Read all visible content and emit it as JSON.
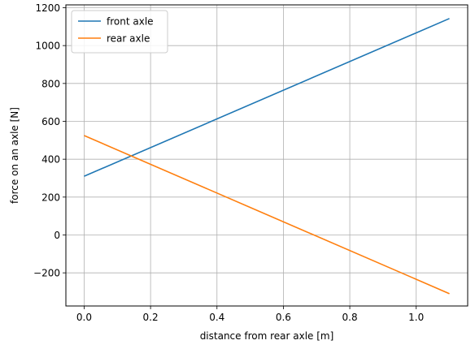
{
  "chart_data": {
    "type": "line",
    "xlabel": "distance from rear axle [m]",
    "ylabel": "force on an axle [N]",
    "xlim": [
      -0.055,
      1.155
    ],
    "ylim": [
      -375,
      1215
    ],
    "xticks": [
      0.0,
      0.2,
      0.4,
      0.6,
      0.8,
      1.0
    ],
    "xtick_labels": [
      "0.0",
      "0.2",
      "0.4",
      "0.6",
      "0.8",
      "1.0"
    ],
    "yticks": [
      -200,
      0,
      200,
      400,
      600,
      800,
      1000,
      1200
    ],
    "ytick_labels": [
      "−200",
      "0",
      "200",
      "400",
      "600",
      "800",
      "1000",
      "1200"
    ],
    "grid": true,
    "legend_position": "top-left",
    "series": [
      {
        "name": "front axle",
        "color": "#1f77b4",
        "x": [
          0.0,
          1.1
        ],
        "y": [
          310,
          1143
        ]
      },
      {
        "name": "rear axle",
        "color": "#ff7f0e",
        "x": [
          0.0,
          1.1
        ],
        "y": [
          525,
          -310
        ]
      }
    ]
  }
}
